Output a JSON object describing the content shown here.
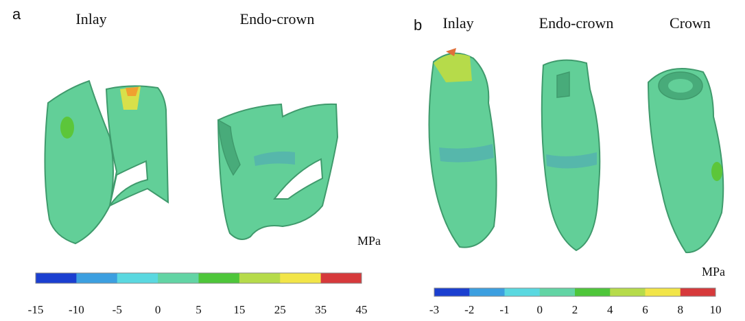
{
  "panels": [
    {
      "label": "a",
      "titles": [
        "Inlay",
        "Endo-crown"
      ],
      "unit": "MPa",
      "colorbar": {
        "colors": [
          "#1b3fd0",
          "#3c9fe0",
          "#5ad8e0",
          "#62d4a4",
          "#4ec63a",
          "#b6db4a",
          "#f2e548",
          "#d6393b"
        ],
        "ticks": [
          -15,
          -10,
          -5,
          0,
          5,
          15,
          25,
          35,
          45
        ]
      }
    },
    {
      "label": "b",
      "titles": [
        "Inlay",
        "Endo-crown",
        "Crown"
      ],
      "unit": "MPa",
      "colorbar": {
        "colors": [
          "#1b3fd0",
          "#3c9fe0",
          "#5ad8e0",
          "#62d4a4",
          "#4ec63a",
          "#b6db4a",
          "#f2e548",
          "#d6393b"
        ],
        "ticks": [
          -3,
          -2,
          -1,
          0,
          2,
          4,
          6,
          8,
          10
        ]
      }
    }
  ]
}
